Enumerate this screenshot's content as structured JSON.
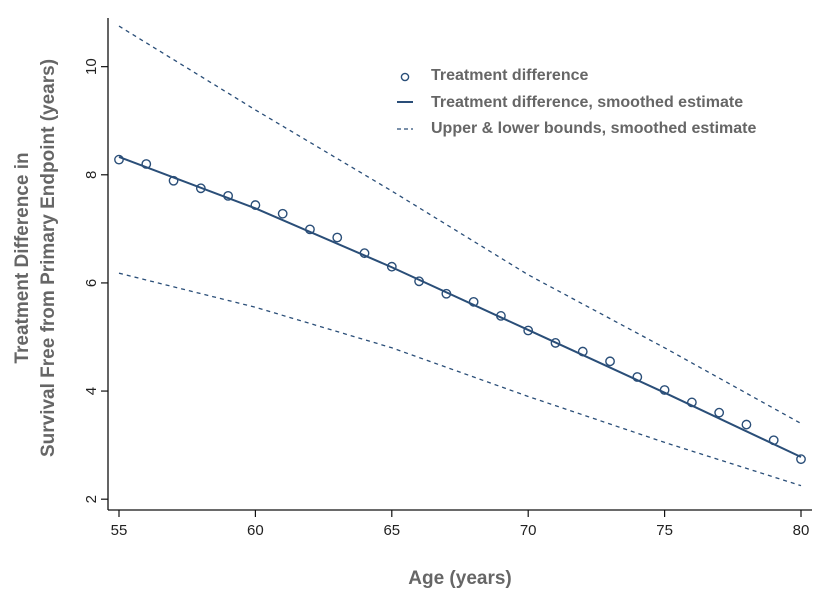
{
  "chart_data": {
    "type": "line",
    "title": "",
    "xlabel": "Age (years)",
    "ylabel_lines": [
      "Treatment Difference in",
      "Survival Free from Primary Endpoint (years)"
    ],
    "xlim": [
      55,
      80
    ],
    "ylim": [
      1.8,
      10.9
    ],
    "x_ticks": [
      55,
      60,
      65,
      70,
      75,
      80
    ],
    "y_ticks": [
      2,
      4,
      6,
      8,
      10
    ],
    "grid": false,
    "legend_position": "top-right",
    "colors": {
      "series": "#2a4e78",
      "text": "#666666",
      "axis": "#111111"
    },
    "series": [
      {
        "name": "Treatment difference",
        "style": "markers",
        "x": [
          55,
          56,
          57,
          58,
          59,
          60,
          61,
          62,
          63,
          64,
          65,
          66,
          67,
          68,
          69,
          70,
          71,
          72,
          73,
          74,
          75,
          76,
          77,
          78,
          79,
          80
        ],
        "y": [
          8.28,
          8.2,
          7.89,
          7.75,
          7.61,
          7.44,
          7.28,
          6.99,
          6.84,
          6.55,
          6.3,
          6.03,
          5.8,
          5.65,
          5.39,
          5.12,
          4.89,
          4.73,
          4.55,
          4.26,
          4.02,
          3.79,
          3.6,
          3.38,
          3.09,
          2.74
        ]
      },
      {
        "name": "Treatment difference, smoothed estimate",
        "style": "solid",
        "x": [
          55,
          60,
          65,
          70,
          75,
          80
        ],
        "y": [
          8.33,
          7.38,
          6.29,
          5.13,
          3.97,
          2.78
        ]
      },
      {
        "name": "Upper & lower bounds, smoothed estimate",
        "style": "dashed",
        "x": [
          55,
          60,
          65,
          70,
          75,
          80
        ],
        "y": [
          10.75,
          9.2,
          7.7,
          6.15,
          4.8,
          3.4
        ]
      },
      {
        "name": "",
        "style": "dashed",
        "x": [
          55,
          60,
          65,
          70,
          75,
          80
        ],
        "y": [
          6.18,
          5.55,
          4.8,
          3.9,
          3.05,
          2.25
        ]
      }
    ]
  }
}
